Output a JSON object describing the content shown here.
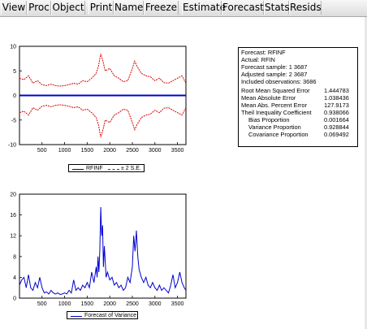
{
  "toolbar": {
    "buttons": [
      "View",
      "Proc",
      "Object",
      "Print",
      "Name",
      "Freeze",
      "Estimate",
      "Forecast",
      "Stats",
      "Resids"
    ]
  },
  "forecast_stats": {
    "header_lines": [
      "Forecast: RFINF",
      "Actual: RFIN",
      "Forecast sample: 1 3687",
      "Adjusted sample: 2 3687",
      "Included observations: 3686"
    ],
    "rows": [
      {
        "label": "Root Mean Squared Error",
        "value": "1.444783"
      },
      {
        "label": "Mean Absolute Error",
        "value": "1.038436"
      },
      {
        "label": "Mean Abs. Percent Error",
        "value": "127.9173"
      },
      {
        "label": "Theil Inequality Coefficient",
        "value": "0.938066"
      },
      {
        "label": "Bias Proportion",
        "value": "0.001664"
      },
      {
        "label": "Variance Proportion",
        "value": "0.928844"
      },
      {
        "label": "Covariance Proportion",
        "value": "0.069492"
      }
    ]
  },
  "legends": {
    "top": {
      "series1": "RFINF",
      "series2": "± 2 S.E."
    },
    "bottom": {
      "series1": "Forecast of Variance"
    }
  },
  "colors": {
    "forecast": "#0000cc",
    "bands": "#dd0000"
  },
  "chart_data": [
    {
      "type": "line",
      "title": "",
      "xlim": [
        1,
        3687
      ],
      "ylim": [
        -10,
        10
      ],
      "x_ticks": [
        500,
        1000,
        1500,
        2000,
        2500,
        3000,
        3500
      ],
      "y_ticks": [
        -10,
        -5,
        0,
        5,
        10
      ],
      "series": [
        {
          "name": "RFINF",
          "x": [
            1,
            3687
          ],
          "values": [
            0,
            0
          ]
        },
        {
          "name": "± 2 S.E.",
          "x": [
            1,
            100,
            200,
            300,
            400,
            500,
            600,
            700,
            800,
            900,
            1000,
            1100,
            1200,
            1300,
            1400,
            1500,
            1600,
            1700,
            1750,
            1800,
            1850,
            1900,
            2000,
            2100,
            2200,
            2300,
            2400,
            2500,
            2550,
            2600,
            2700,
            2800,
            2900,
            3000,
            3100,
            3200,
            3300,
            3400,
            3500,
            3600,
            3687
          ],
          "values": [
            3.5,
            3.2,
            4.0,
            2.5,
            3.0,
            2.2,
            2.0,
            2.3,
            2.0,
            1.9,
            2.0,
            2.2,
            2.5,
            2.3,
            3.0,
            2.8,
            3.5,
            4.5,
            6.0,
            8.5,
            7.0,
            5.0,
            5.5,
            4.0,
            3.5,
            2.8,
            3.0,
            5.5,
            7.0,
            6.0,
            4.5,
            4.0,
            3.8,
            3.0,
            3.5,
            2.6,
            2.5,
            3.0,
            3.5,
            4.0,
            2.5
          ]
        }
      ]
    },
    {
      "type": "line",
      "title": "",
      "xlim": [
        1,
        3687
      ],
      "ylim": [
        0,
        20
      ],
      "x_ticks": [
        500,
        1000,
        1500,
        2000,
        2500,
        3000,
        3500
      ],
      "y_ticks": [
        0,
        4,
        8,
        12,
        16,
        20
      ],
      "series": [
        {
          "name": "Forecast of Variance",
          "x": [
            1,
            50,
            100,
            150,
            200,
            250,
            300,
            350,
            400,
            450,
            500,
            550,
            600,
            650,
            700,
            750,
            800,
            850,
            900,
            950,
            1000,
            1050,
            1100,
            1150,
            1200,
            1250,
            1300,
            1350,
            1400,
            1450,
            1500,
            1550,
            1600,
            1650,
            1700,
            1720,
            1740,
            1760,
            1780,
            1800,
            1820,
            1840,
            1860,
            1880,
            1900,
            1920,
            1950,
            2000,
            2050,
            2100,
            2150,
            2200,
            2250,
            2300,
            2350,
            2400,
            2450,
            2500,
            2530,
            2560,
            2590,
            2620,
            2650,
            2700,
            2750,
            2800,
            2850,
            2900,
            2950,
            3000,
            3050,
            3100,
            3150,
            3200,
            3250,
            3300,
            3350,
            3400,
            3450,
            3500,
            3550,
            3600,
            3650,
            3687
          ],
          "values": [
            2.5,
            3.5,
            4.0,
            2.0,
            4.5,
            2.0,
            1.5,
            3.0,
            2.0,
            4.0,
            2.0,
            1.0,
            1.2,
            0.8,
            1.5,
            1.0,
            0.8,
            1.0,
            0.7,
            0.8,
            1.0,
            0.8,
            1.5,
            1.0,
            3.5,
            1.5,
            2.0,
            1.5,
            2.5,
            2.0,
            3.0,
            2.0,
            5.0,
            3.0,
            6.0,
            4.0,
            8.0,
            5.0,
            9.0,
            17.5,
            12.0,
            14.0,
            6.0,
            10.0,
            7.0,
            4.0,
            5.0,
            3.5,
            4.0,
            2.5,
            3.0,
            2.0,
            2.5,
            1.5,
            2.0,
            4.0,
            3.0,
            6.0,
            12.0,
            9.0,
            13.0,
            8.0,
            5.5,
            4.0,
            3.0,
            4.0,
            2.5,
            2.0,
            3.0,
            2.0,
            1.5,
            2.5,
            1.5,
            2.0,
            1.5,
            1.0,
            2.5,
            4.5,
            2.0,
            3.0,
            5.0,
            3.0,
            2.0,
            1.5
          ]
        }
      ]
    }
  ]
}
